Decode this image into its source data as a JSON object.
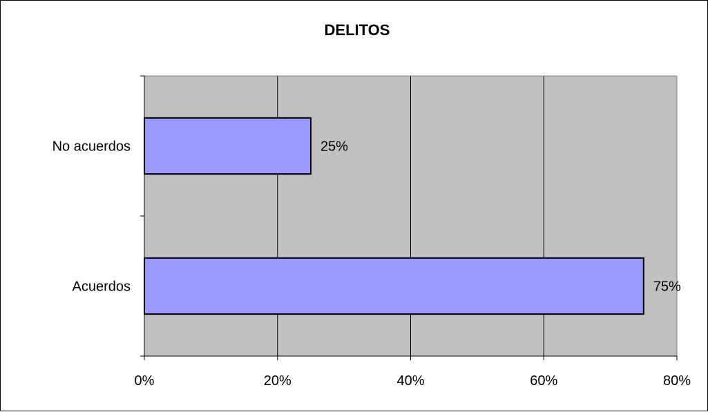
{
  "chart_data": {
    "type": "bar",
    "orientation": "horizontal",
    "title": "DELITOS",
    "categories": [
      "Acuerdos",
      "No acuerdos"
    ],
    "values": [
      75,
      25
    ],
    "data_labels": [
      "75%",
      "25%"
    ],
    "xlim": [
      0,
      80
    ],
    "x_ticks": [
      0,
      20,
      40,
      60,
      80
    ],
    "x_tick_labels": [
      "0%",
      "20%",
      "40%",
      "60%",
      "80%"
    ],
    "xlabel": "",
    "ylabel": "",
    "grid": true,
    "legend": "none",
    "colors": {
      "bar_fill": "#9999ff",
      "bar_stroke": "#000000",
      "plot_background": "#c0c0c0",
      "gridline": "#000000"
    }
  }
}
